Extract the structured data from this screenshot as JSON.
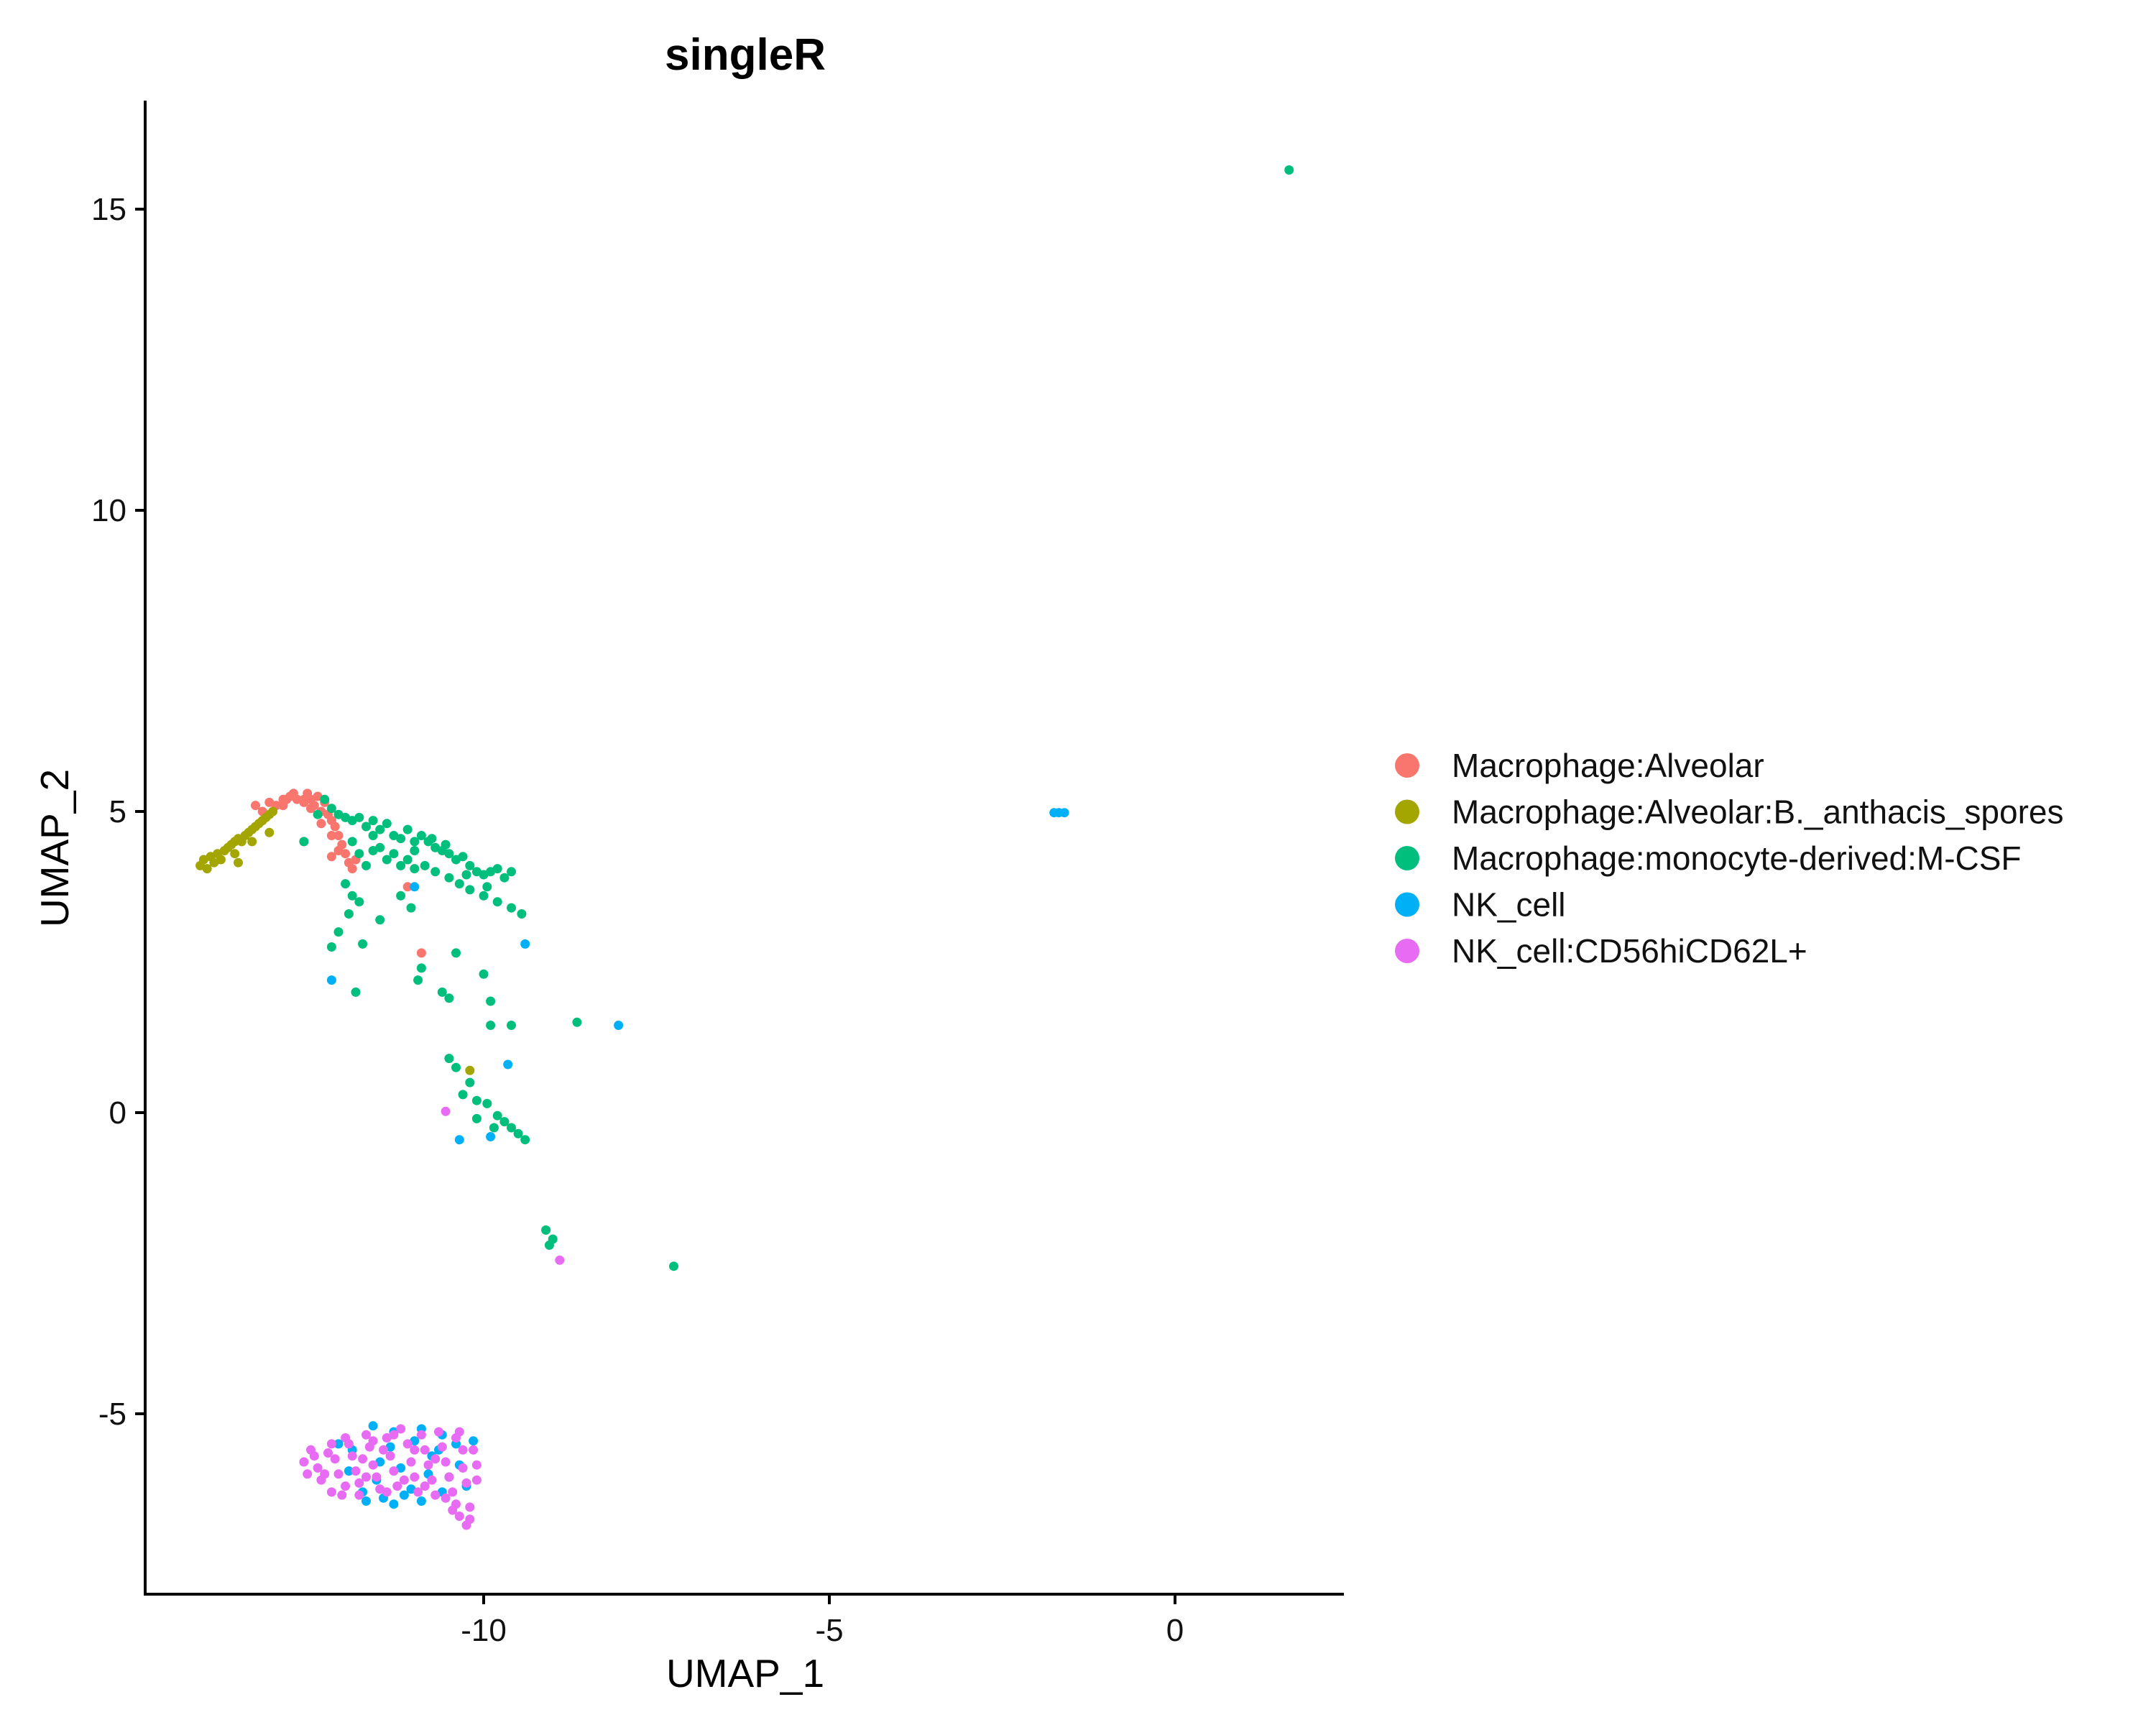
{
  "chart_data": {
    "type": "scatter",
    "title": "singleR",
    "xlabel": "UMAP_1",
    "ylabel": "UMAP_2",
    "xlim": [
      -14.9,
      2.5
    ],
    "ylim": [
      -7.8,
      16.8
    ],
    "xticks": [
      -10,
      -5,
      0
    ],
    "yticks": [
      -5,
      0,
      5,
      10,
      15
    ],
    "grid": false,
    "legend_position": "right",
    "series": [
      {
        "name": "Macrophage:Alveolar",
        "color": "#F8766D",
        "points": [
          [
            -13.3,
            5.1
          ],
          [
            -13.2,
            5.0
          ],
          [
            -13.1,
            5.15
          ],
          [
            -13.0,
            5.1
          ],
          [
            -12.9,
            5.2
          ],
          [
            -12.8,
            5.25
          ],
          [
            -12.75,
            5.3
          ],
          [
            -12.7,
            5.2
          ],
          [
            -12.6,
            5.15
          ],
          [
            -12.55,
            5.3
          ],
          [
            -12.5,
            5.2
          ],
          [
            -12.45,
            5.1
          ],
          [
            -12.4,
            5.25
          ],
          [
            -12.35,
            5.0
          ],
          [
            -12.3,
            5.15
          ],
          [
            -12.25,
            4.95
          ],
          [
            -12.2,
            4.85
          ],
          [
            -12.15,
            4.75
          ],
          [
            -12.1,
            4.6
          ],
          [
            -12.05,
            4.45
          ],
          [
            -12.0,
            4.3
          ],
          [
            -11.95,
            4.15
          ],
          [
            -11.9,
            4.05
          ],
          [
            -12.2,
            4.25
          ],
          [
            -12.1,
            4.35
          ],
          [
            -11.85,
            4.2
          ],
          [
            -12.6,
            4.5
          ],
          [
            -11.1,
            3.75
          ],
          [
            -10.9,
            2.65
          ],
          [
            -12.9,
            5.1
          ],
          [
            -12.85,
            5.2
          ],
          [
            -12.5,
            5.05
          ],
          [
            -12.6,
            5.2
          ],
          [
            -12.35,
            4.8
          ],
          [
            -12.2,
            4.6
          ]
        ]
      },
      {
        "name": "Macrophage:Alveolar:B._anthacis_spores",
        "color": "#A3A500",
        "points": [
          [
            -14.1,
            4.1
          ],
          [
            -14.05,
            4.2
          ],
          [
            -14.0,
            4.05
          ],
          [
            -13.95,
            4.25
          ],
          [
            -13.9,
            4.15
          ],
          [
            -13.85,
            4.3
          ],
          [
            -13.8,
            4.2
          ],
          [
            -13.75,
            4.35
          ],
          [
            -13.7,
            4.4
          ],
          [
            -13.65,
            4.45
          ],
          [
            -13.6,
            4.5
          ],
          [
            -13.55,
            4.55
          ],
          [
            -13.5,
            4.5
          ],
          [
            -13.45,
            4.6
          ],
          [
            -13.4,
            4.65
          ],
          [
            -13.35,
            4.7
          ],
          [
            -13.3,
            4.75
          ],
          [
            -13.25,
            4.8
          ],
          [
            -13.2,
            4.85
          ],
          [
            -13.15,
            4.9
          ],
          [
            -13.1,
            4.95
          ],
          [
            -13.05,
            5.0
          ],
          [
            -13.6,
            4.3
          ],
          [
            -13.35,
            4.5
          ],
          [
            -13.55,
            4.15
          ],
          [
            -13.1,
            4.65
          ],
          [
            -10.2,
            0.7
          ]
        ]
      },
      {
        "name": "Macrophage:monocyte-derived:M-CSF",
        "color": "#00BF7D",
        "points": [
          [
            1.65,
            15.65
          ],
          [
            -12.3,
            5.2
          ],
          [
            -12.2,
            5.05
          ],
          [
            -12.1,
            4.95
          ],
          [
            -12.0,
            4.9
          ],
          [
            -11.9,
            4.85
          ],
          [
            -11.8,
            4.9
          ],
          [
            -11.7,
            4.75
          ],
          [
            -11.6,
            4.85
          ],
          [
            -11.5,
            4.7
          ],
          [
            -11.4,
            4.8
          ],
          [
            -11.3,
            4.6
          ],
          [
            -11.2,
            4.55
          ],
          [
            -11.1,
            4.7
          ],
          [
            -11.0,
            4.5
          ],
          [
            -10.9,
            4.6
          ],
          [
            -10.8,
            4.5
          ],
          [
            -10.7,
            4.4
          ],
          [
            -10.6,
            4.35
          ],
          [
            -10.5,
            4.3
          ],
          [
            -10.4,
            4.2
          ],
          [
            -10.3,
            4.25
          ],
          [
            -10.2,
            4.1
          ],
          [
            -10.1,
            4.0
          ],
          [
            -10.0,
            3.95
          ],
          [
            -9.9,
            4.0
          ],
          [
            -9.8,
            4.05
          ],
          [
            -9.7,
            3.9
          ],
          [
            -9.6,
            4.0
          ],
          [
            -11.9,
            4.5
          ],
          [
            -11.8,
            4.3
          ],
          [
            -11.7,
            4.1
          ],
          [
            -11.6,
            4.35
          ],
          [
            -11.5,
            4.4
          ],
          [
            -11.4,
            4.2
          ],
          [
            -11.3,
            4.3
          ],
          [
            -11.2,
            4.1
          ],
          [
            -11.1,
            4.2
          ],
          [
            -11.0,
            4.35
          ],
          [
            -10.85,
            4.1
          ],
          [
            -10.7,
            4.0
          ],
          [
            -10.5,
            3.9
          ],
          [
            -10.35,
            3.8
          ],
          [
            -10.2,
            3.7
          ],
          [
            -10.0,
            3.6
          ],
          [
            -9.8,
            3.5
          ],
          [
            -9.6,
            3.4
          ],
          [
            -9.45,
            3.3
          ],
          [
            -12.0,
            3.8
          ],
          [
            -11.9,
            3.6
          ],
          [
            -11.8,
            3.5
          ],
          [
            -11.95,
            3.3
          ],
          [
            -12.1,
            3.0
          ],
          [
            -12.2,
            2.75
          ],
          [
            -11.75,
            2.8
          ],
          [
            -11.5,
            3.2
          ],
          [
            -11.2,
            3.6
          ],
          [
            -11.05,
            3.4
          ],
          [
            -10.9,
            2.4
          ],
          [
            -10.95,
            2.2
          ],
          [
            -11.85,
            2.0
          ],
          [
            -10.4,
            2.65
          ],
          [
            -10.0,
            2.3
          ],
          [
            -9.9,
            1.85
          ],
          [
            -10.5,
            1.9
          ],
          [
            -10.6,
            2.0
          ],
          [
            -9.6,
            1.45
          ],
          [
            -9.9,
            1.45
          ],
          [
            -10.5,
            0.9
          ],
          [
            -10.4,
            0.75
          ],
          [
            -10.2,
            0.5
          ],
          [
            -10.3,
            0.3
          ],
          [
            -10.1,
            0.2
          ],
          [
            -9.95,
            0.15
          ],
          [
            -9.8,
            -0.05
          ],
          [
            -9.7,
            -0.15
          ],
          [
            -9.6,
            -0.25
          ],
          [
            -9.5,
            -0.35
          ],
          [
            -9.4,
            -0.45
          ],
          [
            -9.85,
            -0.25
          ],
          [
            -10.1,
            -0.1
          ],
          [
            -9.1,
            -1.95
          ],
          [
            -9.0,
            -2.1
          ],
          [
            -9.05,
            -2.2
          ],
          [
            -8.65,
            1.5
          ],
          [
            -7.25,
            -2.55
          ],
          [
            -12.6,
            4.5
          ],
          [
            -12.4,
            4.95
          ],
          [
            -11.6,
            4.6
          ],
          [
            -11.0,
            4.05
          ],
          [
            -10.75,
            4.55
          ],
          [
            -10.55,
            4.45
          ],
          [
            -10.25,
            3.95
          ],
          [
            -9.95,
            3.75
          ]
        ]
      },
      {
        "name": "NK_cell",
        "color": "#00B0F6",
        "points": [
          [
            -1.75,
            4.98
          ],
          [
            -1.68,
            4.98
          ],
          [
            -1.6,
            4.98
          ],
          [
            -11.0,
            3.75
          ],
          [
            -9.4,
            2.8
          ],
          [
            -12.2,
            2.2
          ],
          [
            -8.05,
            1.45
          ],
          [
            -9.65,
            0.8
          ],
          [
            -10.35,
            -0.45
          ],
          [
            -9.9,
            -0.4
          ],
          [
            -11.6,
            -5.2
          ],
          [
            -11.3,
            -5.3
          ],
          [
            -10.9,
            -5.25
          ],
          [
            -10.6,
            -5.35
          ],
          [
            -10.4,
            -5.5
          ],
          [
            -11.9,
            -5.6
          ],
          [
            -11.5,
            -5.8
          ],
          [
            -11.2,
            -5.9
          ],
          [
            -10.8,
            -6.0
          ],
          [
            -10.5,
            -6.05
          ],
          [
            -10.25,
            -6.2
          ],
          [
            -11.75,
            -6.3
          ],
          [
            -11.45,
            -6.4
          ],
          [
            -11.15,
            -6.35
          ],
          [
            -10.9,
            -6.45
          ],
          [
            -10.6,
            -6.3
          ],
          [
            -11.7,
            -6.45
          ],
          [
            -11.3,
            -6.5
          ],
          [
            -11.05,
            -6.25
          ],
          [
            -10.75,
            -5.7
          ],
          [
            -11.95,
            -5.95
          ],
          [
            -12.1,
            -5.5
          ],
          [
            -10.35,
            -5.85
          ],
          [
            -11.35,
            -5.55
          ],
          [
            -10.65,
            -5.6
          ],
          [
            -11.0,
            -5.45
          ],
          [
            -10.15,
            -5.45
          ],
          [
            -11.55,
            -6.1
          ]
        ]
      },
      {
        "name": "NK_cell:CD56hiCD62L+",
        "color": "#E76BF3",
        "points": [
          [
            -10.55,
            0.02
          ],
          [
            -8.9,
            -2.45
          ],
          [
            -12.6,
            -5.8
          ],
          [
            -12.5,
            -5.6
          ],
          [
            -12.4,
            -5.9
          ],
          [
            -12.35,
            -6.1
          ],
          [
            -12.2,
            -5.5
          ],
          [
            -12.15,
            -5.75
          ],
          [
            -12.1,
            -6.0
          ],
          [
            -12.0,
            -6.2
          ],
          [
            -12.0,
            -5.4
          ],
          [
            -11.9,
            -5.7
          ],
          [
            -11.85,
            -5.95
          ],
          [
            -11.8,
            -6.15
          ],
          [
            -11.7,
            -5.35
          ],
          [
            -11.65,
            -5.55
          ],
          [
            -11.6,
            -5.85
          ],
          [
            -11.55,
            -6.05
          ],
          [
            -11.5,
            -6.25
          ],
          [
            -11.4,
            -5.4
          ],
          [
            -11.35,
            -5.7
          ],
          [
            -11.3,
            -5.95
          ],
          [
            -11.25,
            -6.2
          ],
          [
            -11.2,
            -5.25
          ],
          [
            -11.1,
            -5.5
          ],
          [
            -11.05,
            -5.8
          ],
          [
            -11.0,
            -6.05
          ],
          [
            -10.95,
            -6.3
          ],
          [
            -10.9,
            -5.35
          ],
          [
            -10.85,
            -5.6
          ],
          [
            -10.8,
            -5.85
          ],
          [
            -10.75,
            -6.1
          ],
          [
            -10.7,
            -6.35
          ],
          [
            -10.65,
            -5.3
          ],
          [
            -10.6,
            -5.55
          ],
          [
            -10.55,
            -5.8
          ],
          [
            -10.5,
            -6.05
          ],
          [
            -10.45,
            -6.3
          ],
          [
            -10.4,
            -6.5
          ],
          [
            -10.35,
            -5.3
          ],
          [
            -10.3,
            -5.6
          ],
          [
            -10.3,
            -5.9
          ],
          [
            -10.25,
            -6.15
          ],
          [
            -10.2,
            -6.55
          ],
          [
            -10.2,
            -6.75
          ],
          [
            -10.25,
            -6.85
          ],
          [
            -10.15,
            -5.6
          ],
          [
            -10.1,
            -5.85
          ],
          [
            -10.1,
            -6.1
          ],
          [
            -12.45,
            -5.7
          ],
          [
            -12.3,
            -6.0
          ],
          [
            -12.25,
            -5.65
          ],
          [
            -11.95,
            -5.5
          ],
          [
            -11.75,
            -5.75
          ],
          [
            -11.45,
            -5.6
          ],
          [
            -11.15,
            -6.1
          ],
          [
            -10.85,
            -6.2
          ],
          [
            -10.55,
            -6.4
          ],
          [
            -10.7,
            -5.75
          ],
          [
            -11.0,
            -5.6
          ],
          [
            -11.3,
            -5.35
          ],
          [
            -11.6,
            -5.45
          ],
          [
            -11.8,
            -6.35
          ],
          [
            -12.05,
            -6.35
          ],
          [
            -10.4,
            -5.4
          ],
          [
            -10.35,
            -6.7
          ],
          [
            -10.45,
            -6.6
          ],
          [
            -11.7,
            -6.05
          ],
          [
            -11.4,
            -6.3
          ],
          [
            -12.55,
            -6.0
          ],
          [
            -12.2,
            -6.3
          ]
        ]
      }
    ]
  }
}
